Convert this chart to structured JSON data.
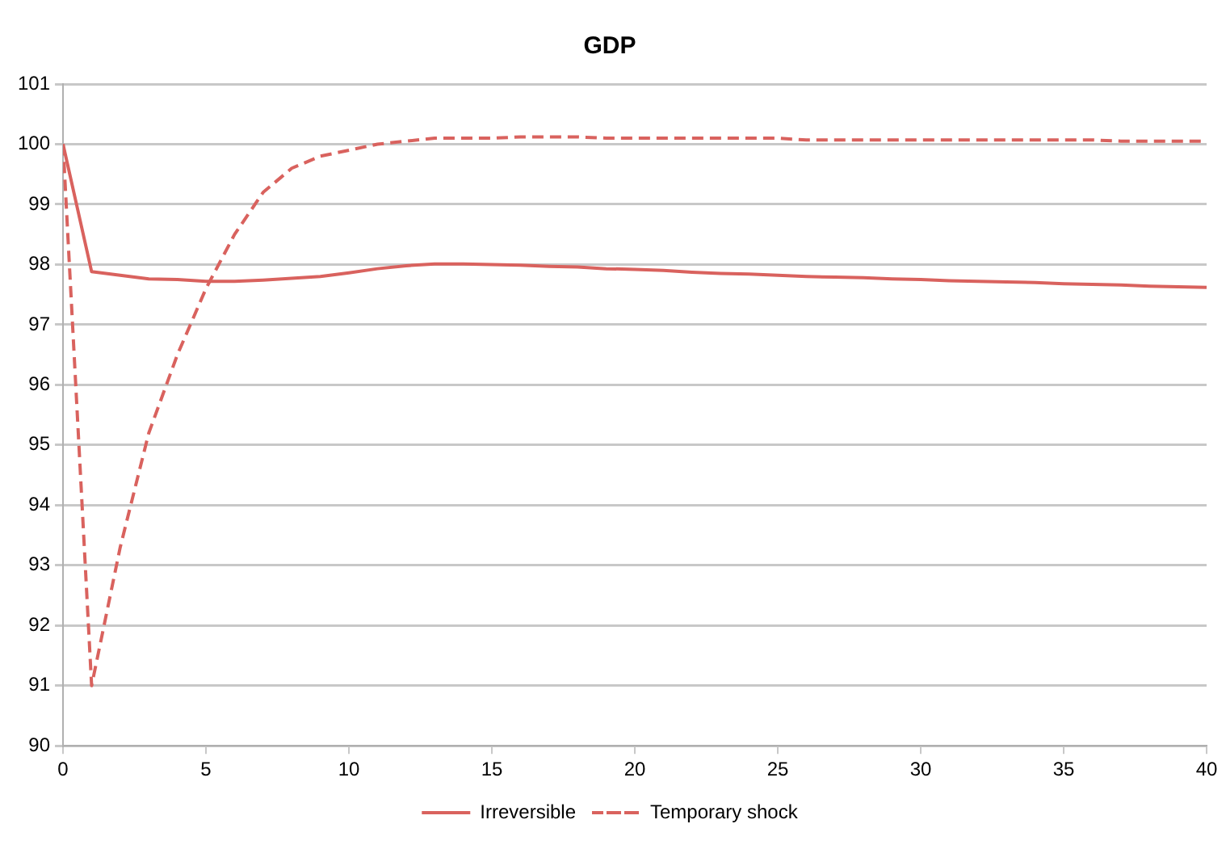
{
  "chart_data": {
    "type": "line",
    "title": "GDP",
    "x": [
      0,
      1,
      2,
      3,
      4,
      5,
      6,
      7,
      8,
      9,
      10,
      11,
      12,
      13,
      14,
      15,
      16,
      17,
      18,
      19,
      20,
      21,
      22,
      23,
      24,
      25,
      26,
      27,
      28,
      29,
      30,
      31,
      32,
      33,
      34,
      35,
      36,
      37,
      38,
      39,
      40
    ],
    "series": [
      {
        "name": "Irreversible",
        "color": "#d9625e",
        "line_style": "solid",
        "values": [
          100,
          97.88,
          97.82,
          97.76,
          97.75,
          97.72,
          97.72,
          97.74,
          97.77,
          97.8,
          97.86,
          97.93,
          97.98,
          98.01,
          98.01,
          98.0,
          97.99,
          97.97,
          97.96,
          97.93,
          97.92,
          97.9,
          97.87,
          97.85,
          97.84,
          97.82,
          97.8,
          97.79,
          97.78,
          97.76,
          97.75,
          97.73,
          97.72,
          97.71,
          97.7,
          97.68,
          97.67,
          97.66,
          97.64,
          97.63,
          97.62
        ]
      },
      {
        "name": "Temporary shock",
        "color": "#d9625e",
        "line_style": "dashed",
        "values": [
          100,
          91.0,
          93.3,
          95.2,
          96.5,
          97.6,
          98.5,
          99.2,
          99.6,
          99.8,
          99.9,
          100.0,
          100.05,
          100.1,
          100.1,
          100.1,
          100.12,
          100.12,
          100.12,
          100.1,
          100.1,
          100.1,
          100.1,
          100.1,
          100.1,
          100.1,
          100.07,
          100.07,
          100.07,
          100.07,
          100.07,
          100.07,
          100.07,
          100.07,
          100.07,
          100.07,
          100.07,
          100.05,
          100.05,
          100.05,
          100.05
        ]
      }
    ],
    "xlim": [
      0,
      40
    ],
    "xticks": [
      0,
      5,
      10,
      15,
      20,
      25,
      30,
      35,
      40
    ],
    "ylim": [
      90,
      101
    ],
    "yticks": [
      90,
      91,
      92,
      93,
      94,
      95,
      96,
      97,
      98,
      99,
      100,
      101
    ],
    "grid": "y",
    "legend": "bottom",
    "marker": "none"
  }
}
